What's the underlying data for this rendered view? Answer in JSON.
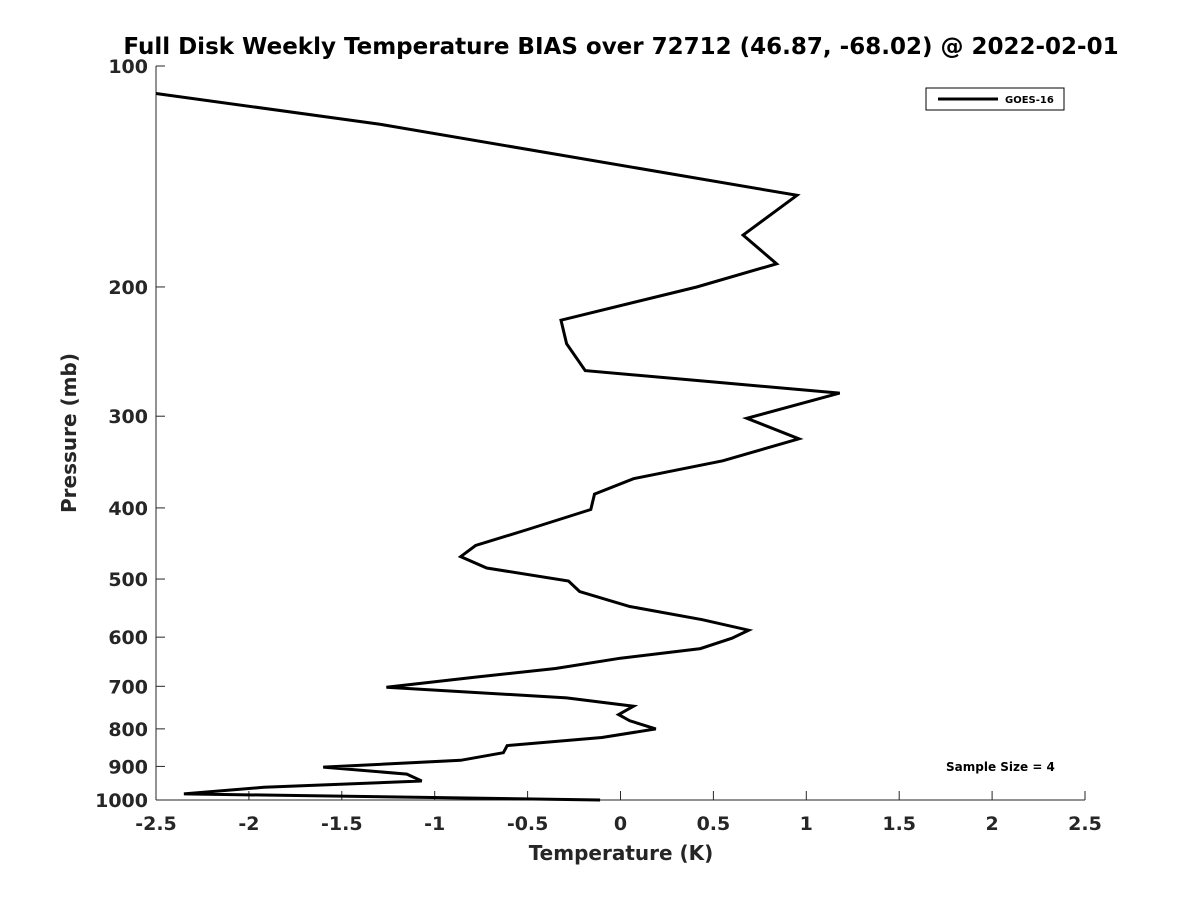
{
  "chart_data": {
    "type": "line",
    "title": "Full Disk Weekly Temperature BIAS over 72712 (46.87, -68.02) @ 2022-02-01",
    "xlabel": "Temperature (K)",
    "ylabel": "Pressure (mb)",
    "xlim": [
      -2.5,
      2.5
    ],
    "ylim": [
      100,
      1000
    ],
    "y_scale": "log",
    "y_reversed": true,
    "grid": false,
    "legend_position": "top-right",
    "x_ticks": [
      -2.5,
      -2,
      -1.5,
      -1,
      -0.5,
      0,
      0.5,
      1,
      1.5,
      2,
      2.5
    ],
    "x_tick_labels": [
      "-2.5",
      "-2",
      "-1.5",
      "-1",
      "-0.5",
      "0",
      "0.5",
      "1",
      "1.5",
      "2",
      "2.5"
    ],
    "y_ticks": [
      100,
      200,
      300,
      400,
      500,
      600,
      700,
      800,
      900,
      1000
    ],
    "y_tick_labels": [
      "100",
      "200",
      "300",
      "400",
      "500",
      "600",
      "700",
      "800",
      "900",
      "1000"
    ],
    "series": [
      {
        "name": "GOES-16",
        "color": "#000000",
        "points": [
          {
            "x": -2.5,
            "p": 109
          },
          {
            "x": -1.3,
            "p": 120
          },
          {
            "x": 0.95,
            "p": 150
          },
          {
            "x": 0.66,
            "p": 170
          },
          {
            "x": 0.84,
            "p": 186
          },
          {
            "x": 0.41,
            "p": 200
          },
          {
            "x": -0.32,
            "p": 222
          },
          {
            "x": -0.29,
            "p": 239
          },
          {
            "x": -0.19,
            "p": 260
          },
          {
            "x": 1.18,
            "p": 279
          },
          {
            "x": 0.68,
            "p": 302
          },
          {
            "x": 0.96,
            "p": 322
          },
          {
            "x": 0.55,
            "p": 345
          },
          {
            "x": 0.07,
            "p": 365
          },
          {
            "x": -0.14,
            "p": 383
          },
          {
            "x": -0.16,
            "p": 402
          },
          {
            "x": -0.5,
            "p": 428
          },
          {
            "x": -0.78,
            "p": 450
          },
          {
            "x": -0.86,
            "p": 466
          },
          {
            "x": -0.72,
            "p": 483
          },
          {
            "x": -0.28,
            "p": 503
          },
          {
            "x": -0.22,
            "p": 520
          },
          {
            "x": 0.05,
            "p": 545
          },
          {
            "x": 0.44,
            "p": 568
          },
          {
            "x": 0.69,
            "p": 587
          },
          {
            "x": 0.6,
            "p": 602
          },
          {
            "x": 0.43,
            "p": 622
          },
          {
            "x": 0.0,
            "p": 641
          },
          {
            "x": -0.35,
            "p": 662
          },
          {
            "x": -0.78,
            "p": 680
          },
          {
            "x": -1.26,
            "p": 702
          },
          {
            "x": -0.29,
            "p": 726
          },
          {
            "x": 0.07,
            "p": 745
          },
          {
            "x": -0.01,
            "p": 765
          },
          {
            "x": 0.05,
            "p": 780
          },
          {
            "x": 0.19,
            "p": 800
          },
          {
            "x": -0.1,
            "p": 822
          },
          {
            "x": -0.61,
            "p": 843
          },
          {
            "x": -0.63,
            "p": 862
          },
          {
            "x": -0.86,
            "p": 883
          },
          {
            "x": -1.6,
            "p": 902
          },
          {
            "x": -1.15,
            "p": 922
          },
          {
            "x": -1.07,
            "p": 942
          },
          {
            "x": -1.92,
            "p": 961
          },
          {
            "x": -2.35,
            "p": 981
          },
          {
            "x": -0.11,
            "p": 1000
          }
        ]
      }
    ],
    "annotations": [
      "Sample Size = 4"
    ]
  }
}
